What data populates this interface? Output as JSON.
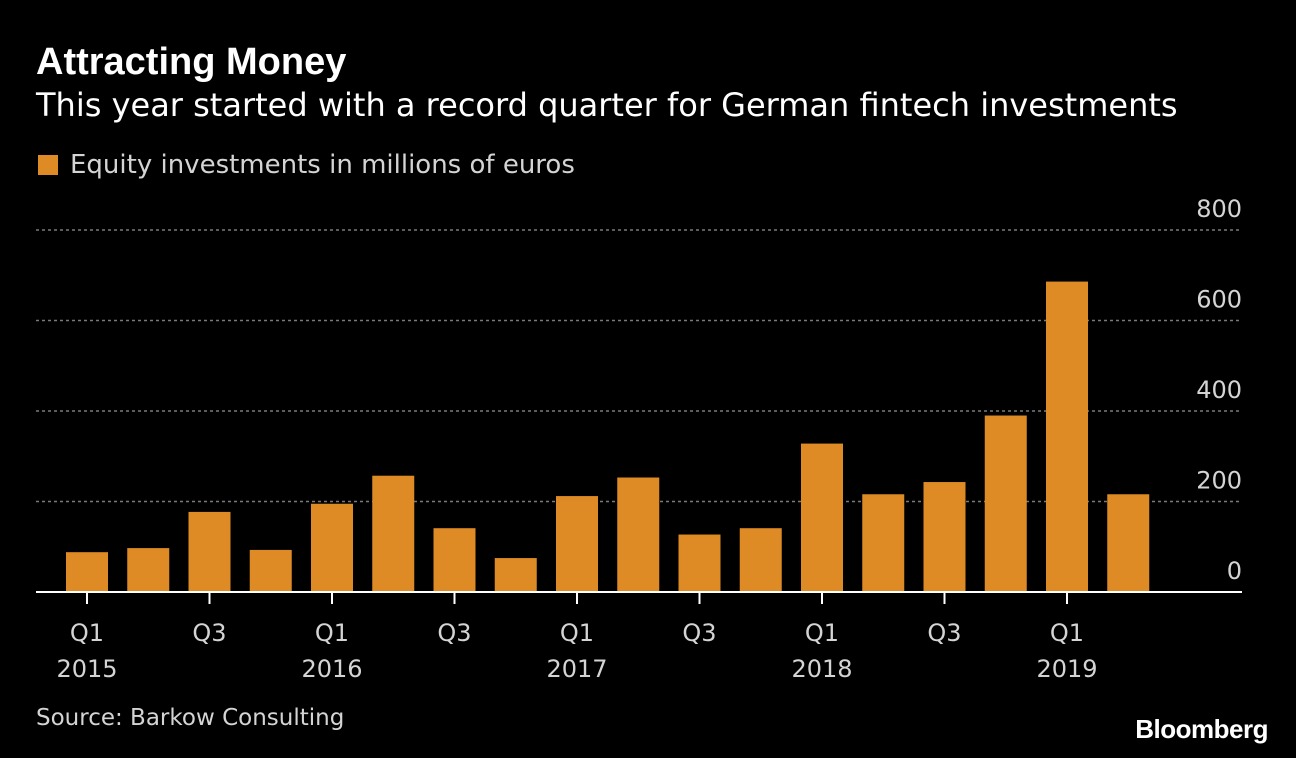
{
  "title": "Attracting Money",
  "subtitle": "This year started with a record quarter for German fintech investments",
  "legend": {
    "label": "Equity investments in millions of euros"
  },
  "source": "Source: Barkow Consulting",
  "logo": "Bloomberg",
  "colors": {
    "background": "#000000",
    "bar": "#de8b25",
    "gridline": "#7a7a7a",
    "axis": "#ffffff",
    "text": "#ffffff",
    "muted_text": "#d4d4d4"
  },
  "chart_data": {
    "type": "bar",
    "categories": [
      "Q1 2015",
      "Q2 2015",
      "Q3 2015",
      "Q4 2015",
      "Q1 2016",
      "Q2 2016",
      "Q3 2016",
      "Q4 2016",
      "Q1 2017",
      "Q2 2017",
      "Q3 2017",
      "Q4 2017",
      "Q1 2018",
      "Q2 2018",
      "Q3 2018",
      "Q4 2018",
      "Q1 2019",
      "Q2 2019"
    ],
    "series": [
      {
        "name": "Equity investments in millions of euros",
        "values": [
          88,
          97,
          177,
          93,
          195,
          257,
          141,
          75,
          212,
          253,
          127,
          141,
          328,
          216,
          243,
          390,
          686,
          216
        ]
      }
    ],
    "x_tick_labels": [
      {
        "index": 0,
        "quarter": "Q1",
        "year": "2015"
      },
      {
        "index": 2,
        "quarter": "Q3",
        "year": ""
      },
      {
        "index": 4,
        "quarter": "Q1",
        "year": "2016"
      },
      {
        "index": 6,
        "quarter": "Q3",
        "year": ""
      },
      {
        "index": 8,
        "quarter": "Q1",
        "year": "2017"
      },
      {
        "index": 10,
        "quarter": "Q3",
        "year": ""
      },
      {
        "index": 12,
        "quarter": "Q1",
        "year": "2018"
      },
      {
        "index": 14,
        "quarter": "Q3",
        "year": ""
      },
      {
        "index": 16,
        "quarter": "Q1",
        "year": "2019"
      }
    ],
    "y_ticks": [
      0,
      200,
      400,
      600,
      800
    ],
    "ylim": [
      0,
      800
    ],
    "y_axis_side": "right",
    "grid": true,
    "legend_position": "top-left",
    "xlabel": "",
    "ylabel": ""
  }
}
